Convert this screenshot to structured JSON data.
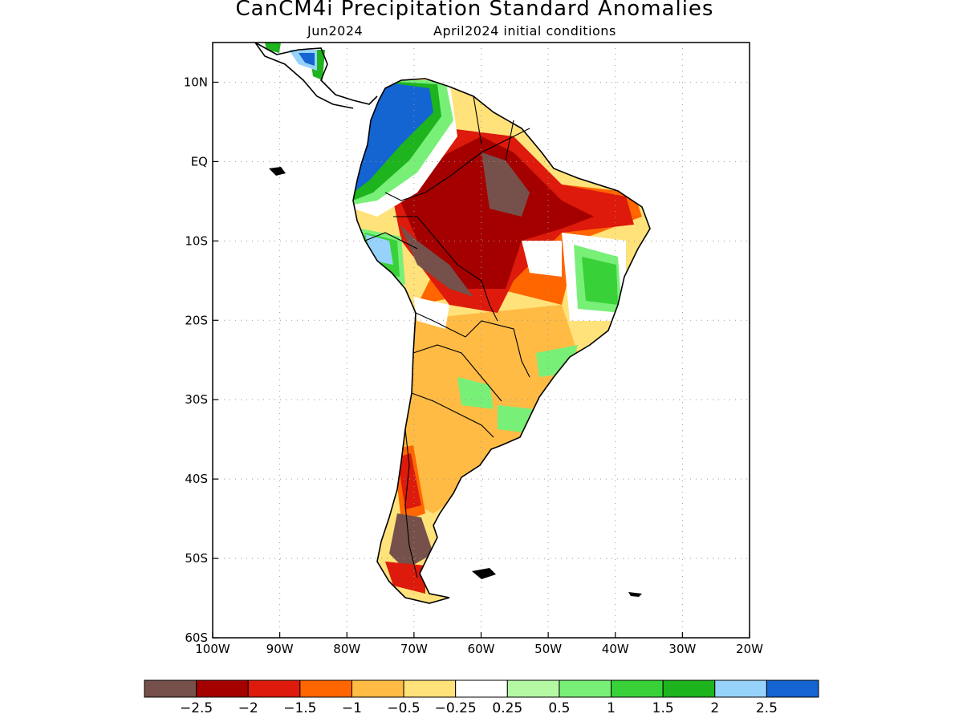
{
  "title": "CanCM4i Precipitation Standard Anomalies",
  "subtitle_left": "Jun2024",
  "subtitle_right": "April2024 initial conditions",
  "map": {
    "lon_range": [
      -100,
      -20
    ],
    "lat_range": [
      -60,
      15
    ],
    "lon_ticks": [
      {
        "value": -100,
        "label": "100W"
      },
      {
        "value": -90,
        "label": "90W"
      },
      {
        "value": -80,
        "label": "80W"
      },
      {
        "value": -70,
        "label": "70W"
      },
      {
        "value": -60,
        "label": "60W"
      },
      {
        "value": -50,
        "label": "50W"
      },
      {
        "value": -40,
        "label": "40W"
      },
      {
        "value": -30,
        "label": "30W"
      },
      {
        "value": -20,
        "label": "20W"
      }
    ],
    "lat_ticks": [
      {
        "value": 10,
        "label": "10N"
      },
      {
        "value": 0,
        "label": "EQ"
      },
      {
        "value": -10,
        "label": "10S"
      },
      {
        "value": -20,
        "label": "20S"
      },
      {
        "value": -30,
        "label": "30S"
      },
      {
        "value": -40,
        "label": "40S"
      },
      {
        "value": -50,
        "label": "50S"
      },
      {
        "value": -60,
        "label": "60S"
      }
    ],
    "grid": "dotted"
  },
  "colorbar": {
    "colors": [
      "#76504a",
      "#a50000",
      "#dd1a0b",
      "#ff6600",
      "#ffbb44",
      "#ffe27a",
      "#ffffff",
      "#b4f8a4",
      "#78f078",
      "#38d238",
      "#1eb41e",
      "#96d2fa",
      "#1464d2"
    ],
    "labels": [
      "−2.5",
      "−2",
      "−1.5",
      "−1",
      "−0.5",
      "−0.25",
      "0.25",
      "0.5",
      "1",
      "1.5",
      "2",
      "2.5"
    ]
  },
  "colors": {
    "brown": "#76504a",
    "dark_red": "#a50000",
    "red": "#dd1a0b",
    "orange": "#ff6600",
    "light_orange": "#ffbb44",
    "yellow": "#ffe27a",
    "white": "#ffffff",
    "pale_green": "#b4f8a4",
    "light_green": "#78f078",
    "green": "#38d238",
    "dark_green": "#1eb41e",
    "light_blue": "#96d2fa",
    "blue": "#1464d2"
  }
}
